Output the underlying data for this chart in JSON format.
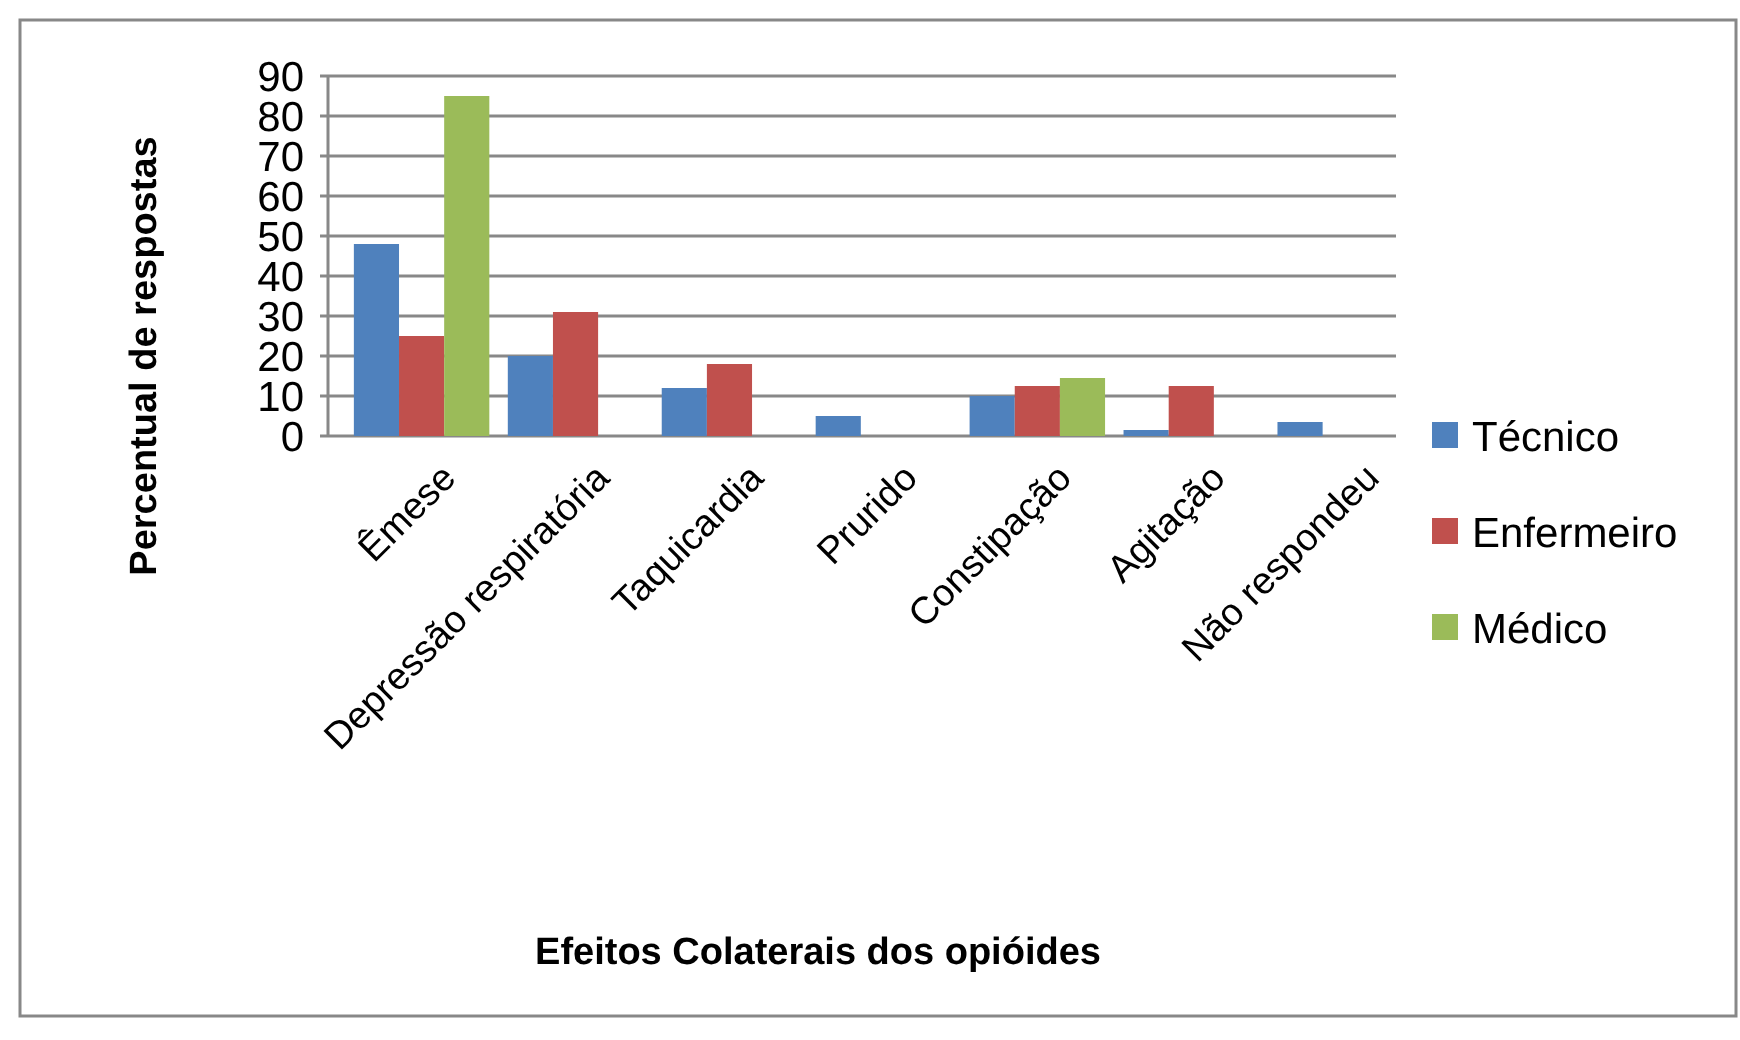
{
  "chart_data": {
    "type": "bar",
    "xlabel": "Efeitos Colaterais dos opióides",
    "ylabel": "Percentual de respostas",
    "categories": [
      "Êmese",
      "Depressão respiratória",
      "Taquicardia",
      "Prurido",
      "Constipação",
      "Agitação",
      "Não respondeu"
    ],
    "series": [
      {
        "name": "Técnico",
        "color": "#4f81bd",
        "values": [
          48,
          20,
          12,
          5,
          10,
          1.5,
          3.5
        ]
      },
      {
        "name": "Enfermeiro",
        "color": "#c0504d",
        "values": [
          25,
          31,
          18,
          null,
          12.5,
          12.5,
          null
        ]
      },
      {
        "name": "Médico",
        "color": "#9bbb59",
        "values": [
          85,
          null,
          null,
          null,
          14.5,
          null,
          null
        ]
      }
    ],
    "ylim": [
      0,
      90
    ],
    "yticks": [
      0,
      10,
      20,
      30,
      40,
      50,
      60,
      70,
      80,
      90
    ],
    "grid": "y",
    "legend": "right"
  }
}
